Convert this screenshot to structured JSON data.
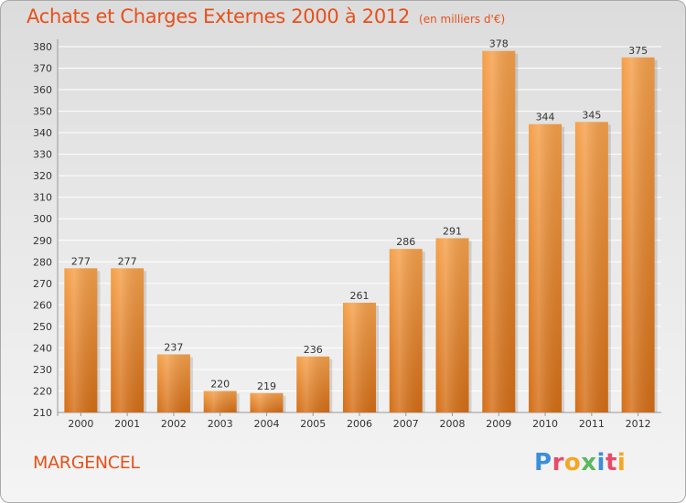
{
  "header": {
    "title": "Achats et Charges Externes 2000 à 2012",
    "subtitle": "(en milliers d'€)"
  },
  "footer": {
    "place_name": "MARGENCEL",
    "logo_text": "Proxiti"
  },
  "colors": {
    "title": "#e8501a",
    "bar_top": "#f5a04a",
    "bar_bottom": "#d46e16",
    "grid": "#ffffff"
  },
  "chart_data": {
    "type": "bar",
    "title": "Achats et Charges Externes 2000 à 2012",
    "subtitle": "(en milliers d'€)",
    "xlabel": "",
    "ylabel": "",
    "categories": [
      "2000",
      "2001",
      "2002",
      "2003",
      "2004",
      "2005",
      "2006",
      "2007",
      "2008",
      "2009",
      "2010",
      "2011",
      "2012"
    ],
    "values": [
      277,
      277,
      237,
      220,
      219,
      236,
      261,
      286,
      291,
      378,
      344,
      345,
      375
    ],
    "ylim": [
      210,
      380
    ],
    "yticks": [
      210,
      220,
      230,
      240,
      250,
      260,
      270,
      280,
      290,
      300,
      310,
      320,
      330,
      340,
      350,
      360,
      370,
      380
    ],
    "grid": true,
    "legend": "none",
    "data_labels": true
  }
}
